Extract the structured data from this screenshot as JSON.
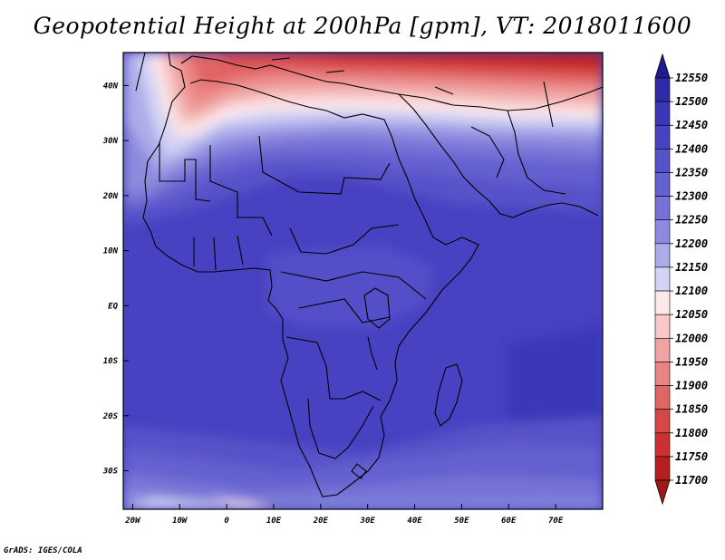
{
  "title": "Geopotential Height at 200hPa [gpm], VT: 2018011600",
  "footer": "GrADS: IGES/COLA",
  "map": {
    "lon_labels": [
      "20W",
      "10W",
      "0",
      "10E",
      "20E",
      "30E",
      "40E",
      "50E",
      "60E",
      "70E"
    ],
    "lat_labels": [
      "40N",
      "30N",
      "20N",
      "10N",
      "EQ",
      "10S",
      "20S",
      "30S"
    ],
    "lon_range": [
      -22,
      80
    ],
    "lat_range": [
      -37,
      46
    ]
  },
  "colorbar": {
    "levels": [
      "12550",
      "12500",
      "12450",
      "12400",
      "12350",
      "12300",
      "12250",
      "12200",
      "12150",
      "12100",
      "12050",
      "12000",
      "11950",
      "11900",
      "11850",
      "11800",
      "11750",
      "11700"
    ],
    "colors": [
      "#1f1c8f",
      "#2e2aa8",
      "#3b37b8",
      "#4642c2",
      "#5652c9",
      "#6461d0",
      "#7673d6",
      "#8d8bde",
      "#adacea",
      "#d3d3f5",
      "#fde8e8",
      "#f8c8c8",
      "#f1a2a2",
      "#ea8585",
      "#e06565",
      "#d84747",
      "#cc3030",
      "#b51f1f",
      "#a11818"
    ],
    "units": "gpm"
  }
}
